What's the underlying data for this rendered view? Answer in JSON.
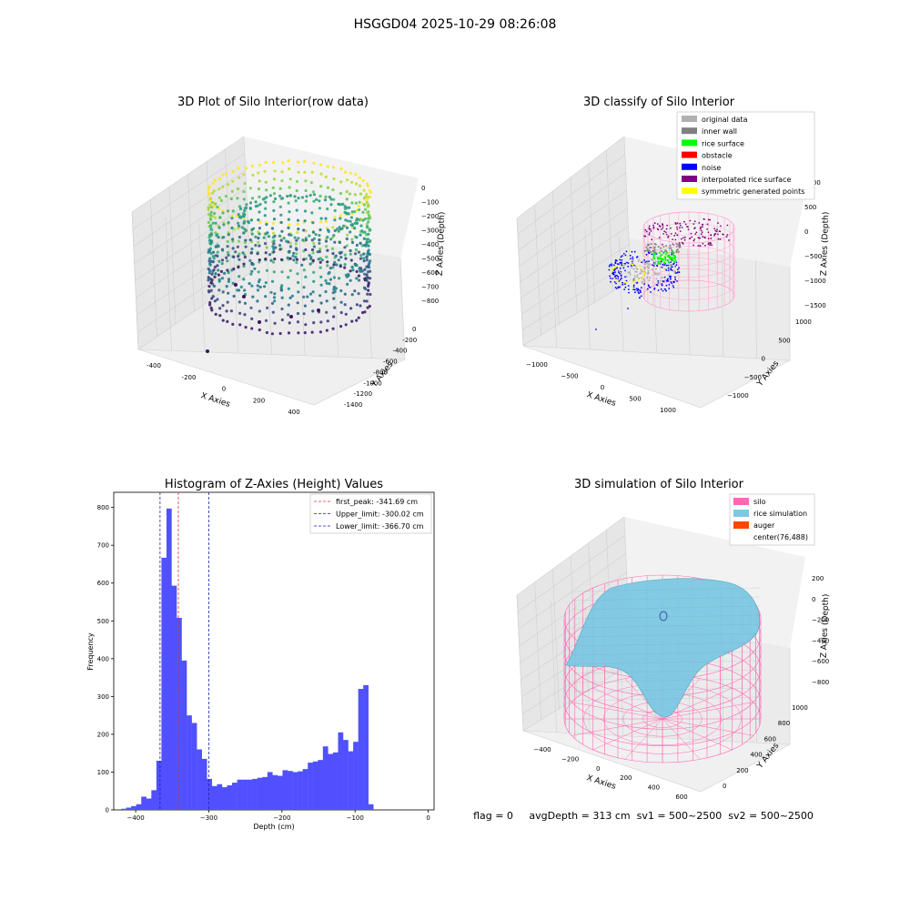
{
  "suptitle": "HSGGD04 2025-10-29 08:26:08",
  "footer": "flag = 0     avgDepth = 313 cm  sv1 = 500~2500  sv2 = 500~2500",
  "colors": {
    "hist_bar": "#5050ff",
    "first_peak": "#e03030",
    "limits": "#2020b0",
    "silo": "#ff69b4",
    "rice": "#7ec8e3",
    "auger": "#ff4500"
  },
  "chart_data": [
    {
      "type": "scatter",
      "projection": "3d",
      "title": "3D Plot of Silo Interior(row data)",
      "xlabel": "X Axies",
      "ylabel": "Y Axies",
      "zlabel": "Z Axies (Depth)",
      "x_ticks": [
        "-400",
        "-200",
        "0",
        "200",
        "400"
      ],
      "y_ticks": [
        "0",
        "-200",
        "-400",
        "-600",
        "-800",
        "-1000",
        "-1200",
        "-1400"
      ],
      "z_ticks": [
        "0",
        "−100",
        "−200",
        "−300",
        "−400",
        "−500",
        "−600",
        "−700",
        "−800"
      ],
      "colormap": "viridis",
      "shape": "cylindrical ring of points",
      "center_depth_min": -850,
      "center_depth_max": -50
    },
    {
      "type": "scatter",
      "projection": "3d",
      "title": "3D classify of Silo Interior",
      "xlabel": "X Axies",
      "ylabel": "Y Axies",
      "zlabel": "Z Axies (Depth)",
      "x_ticks": [
        "−1000",
        "−500",
        "0",
        "500",
        "1000"
      ],
      "y_ticks": [
        "1000",
        "500",
        "0",
        "−500",
        "−1000"
      ],
      "z_ticks": [
        "1000",
        "500",
        "0",
        "−500",
        "−1000",
        "−1500"
      ],
      "legend": {
        "position": "upper right",
        "items": [
          {
            "label": "original data",
            "color": "#b0b0b0"
          },
          {
            "label": "inner wall",
            "color": "#808080"
          },
          {
            "label": "rice surface",
            "color": "#00ff00"
          },
          {
            "label": "obstacle",
            "color": "#ff0000"
          },
          {
            "label": "noise",
            "color": "#0000ff"
          },
          {
            "label": "interpolated rice surface",
            "color": "#800080"
          },
          {
            "label": "symmetric generated points",
            "color": "#ffff00"
          }
        ]
      }
    },
    {
      "type": "bar",
      "title": "Histogram of Z-Axies (Height) Values",
      "xlabel": "Depth (cm)",
      "ylabel": "Frequency",
      "xlim": [
        -430,
        8
      ],
      "ylim": [
        0,
        840
      ],
      "x_ticks": [
        -400,
        -300,
        -200,
        -100,
        0
      ],
      "x_tick_labels": [
        "−400",
        "−300",
        "−200",
        "−100",
        "0"
      ],
      "y_ticks": [
        0,
        100,
        200,
        300,
        400,
        500,
        600,
        700,
        800
      ],
      "bin_start": -420,
      "bin_width": 6.9,
      "values": [
        3,
        6,
        10,
        15,
        35,
        30,
        52,
        130,
        667,
        797,
        593,
        508,
        395,
        250,
        230,
        160,
        135,
        82,
        63,
        68,
        60,
        65,
        72,
        80,
        80,
        80,
        82,
        85,
        87,
        100,
        92,
        90,
        105,
        103,
        100,
        102,
        108,
        125,
        128,
        132,
        168,
        148,
        152,
        205,
        185,
        155,
        180,
        320,
        330,
        15
      ],
      "vlines": [
        {
          "label": "first_peak: -341.69 cm",
          "x": -341.69,
          "color": "#e03030"
        },
        {
          "label": "Upper_limit: -300.02 cm",
          "x": -300.02,
          "color": "#2020b0"
        },
        {
          "label": "Lower_limit: -366.70 cm",
          "x": -366.7,
          "color": "#2020b0"
        }
      ],
      "legend_position": "upper right"
    },
    {
      "type": "surface",
      "projection": "3d",
      "title": "3D simulation of Silo Interior",
      "xlabel": "X Axies",
      "ylabel": "Y Axies",
      "zlabel": "Z Axies (Depth)",
      "x_ticks": [
        "−400",
        "−200",
        "0",
        "200",
        "400",
        "600"
      ],
      "y_ticks": [
        "0",
        "200",
        "400",
        "600",
        "800",
        "1000"
      ],
      "z_ticks": [
        "200",
        "0",
        "−200",
        "−400",
        "−600",
        "−800"
      ],
      "legend": {
        "position": "upper right",
        "items": [
          {
            "label": "silo",
            "color": "#ff69b4"
          },
          {
            "label": "rice simulation",
            "color": "#7ec8e3"
          },
          {
            "label": "auger",
            "color": "#ff4500"
          },
          {
            "label": "center(76,488)",
            "color": ""
          }
        ]
      }
    }
  ]
}
